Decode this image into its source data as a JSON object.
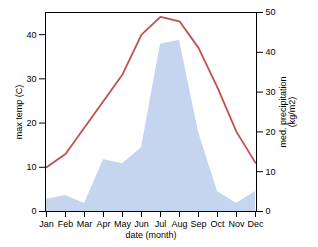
{
  "chart_data": {
    "type": "line",
    "xlabel": "date (month)",
    "ylabel": "max temp (C)",
    "y2label": "med. precipitation\n(kg/m2)",
    "categories": [
      "Jan",
      "Feb",
      "Mar",
      "Apr",
      "May",
      "Jun",
      "Jul",
      "Aug",
      "Sep",
      "Oct",
      "Nov",
      "Dec"
    ],
    "series": [
      {
        "type": "area",
        "axis": "y2",
        "color": "#c5d5f0",
        "values": [
          3,
          4,
          2,
          13,
          12,
          16,
          42,
          43,
          20,
          5,
          2,
          5
        ]
      },
      {
        "type": "line",
        "color": "#c0504d",
        "values": [
          10,
          13,
          19,
          25,
          31,
          40,
          44,
          43,
          37,
          28,
          18,
          11
        ]
      }
    ],
    "ylim": [
      0,
      45
    ],
    "yticks": [
      0,
      10,
      20,
      30,
      40
    ],
    "y2lim": [
      0,
      50
    ],
    "y2ticks": [
      0,
      10,
      20,
      30,
      40,
      50
    ],
    "grid": false
  }
}
